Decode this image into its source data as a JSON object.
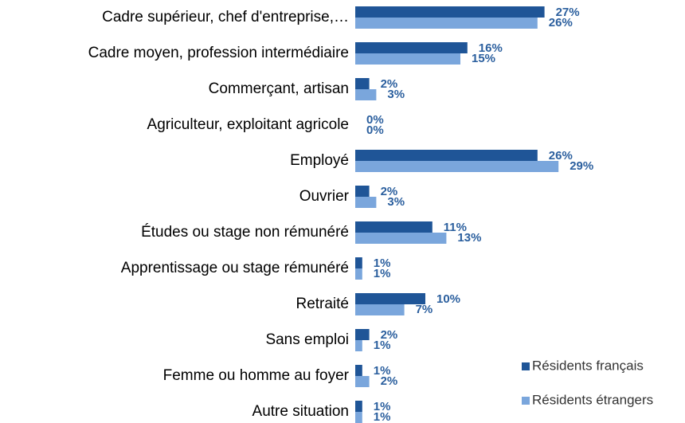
{
  "chart_data": {
    "type": "bar",
    "orientation": "horizontal",
    "categories": [
      "Cadre supérieur, chef d'entreprise,…",
      "Cadre moyen, profession intermédiaire",
      "Commerçant, artisan",
      "Agriculteur, exploitant agricole",
      "Employé",
      "Ouvrier",
      "Études ou stage non rémunéré",
      "Apprentissage ou stage rémunéré",
      "Retraité",
      "Sans emploi",
      "Femme ou homme au foyer",
      "Autre situation"
    ],
    "series": [
      {
        "name": "Résidents français",
        "color": "#1f5597",
        "values": [
          27,
          16,
          2,
          0,
          26,
          2,
          11,
          1,
          10,
          2,
          1,
          1
        ],
        "value_labels": [
          "27%",
          "16%",
          "2%",
          "0%",
          "26%",
          "2%",
          "11%",
          "1%",
          "10%",
          "2%",
          "1%",
          "1%"
        ]
      },
      {
        "name": "Résidents étrangers",
        "color": "#7aa6dc",
        "values": [
          26,
          15,
          3,
          0,
          29,
          3,
          13,
          1,
          7,
          1,
          2,
          1
        ],
        "value_labels": [
          "26%",
          "15%",
          "3%",
          "0%",
          "29%",
          "3%",
          "13%",
          "1%",
          "7%",
          "1%",
          "2%",
          "1%"
        ]
      }
    ],
    "legend": "bottom-right"
  }
}
